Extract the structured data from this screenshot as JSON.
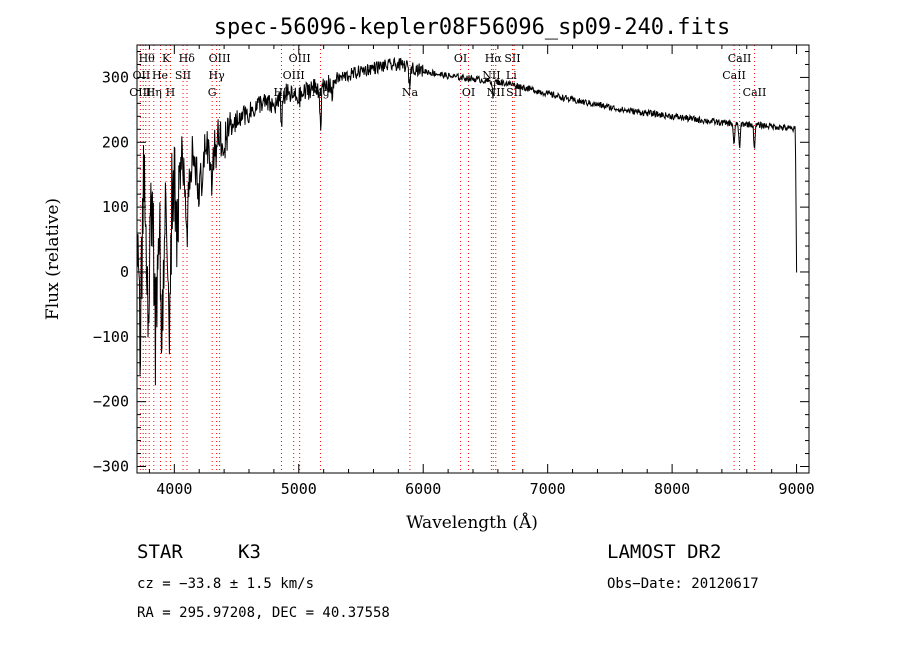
{
  "chart_data": {
    "type": "line",
    "title": "spec-56096-kepler08F56096_sp09-240.fits",
    "xlabel": "Wavelength (Å)",
    "ylabel": "Flux (relative)",
    "xlim": [
      3700,
      9100
    ],
    "ylim": [
      -310,
      350
    ],
    "xticks": [
      4000,
      5000,
      6000,
      7000,
      8000,
      9000
    ],
    "yticks": [
      -300,
      -200,
      -100,
      0,
      100,
      200,
      300
    ],
    "grid": false,
    "series_color": "#000000",
    "line_marker_color": "#ff0000",
    "anchors": [
      [
        3700,
        50
      ],
      [
        3725,
        -100
      ],
      [
        3760,
        200
      ],
      [
        3790,
        -60
      ],
      [
        3820,
        150
      ],
      [
        3850,
        -110
      ],
      [
        3875,
        100
      ],
      [
        3900,
        -70
      ],
      [
        3930,
        160
      ],
      [
        3960,
        -30
      ],
      [
        3990,
        190
      ],
      [
        4020,
        30
      ],
      [
        4060,
        180
      ],
      [
        4100,
        110
      ],
      [
        4150,
        190
      ],
      [
        4200,
        120
      ],
      [
        4250,
        210
      ],
      [
        4300,
        170
      ],
      [
        4350,
        220
      ],
      [
        4400,
        200
      ],
      [
        4500,
        235
      ],
      [
        4600,
        245
      ],
      [
        4700,
        262
      ],
      [
        4800,
        255
      ],
      [
        4900,
        275
      ],
      [
        5000,
        268
      ],
      [
        5100,
        285
      ],
      [
        5200,
        282
      ],
      [
        5300,
        298
      ],
      [
        5400,
        303
      ],
      [
        5500,
        310
      ],
      [
        5600,
        315
      ],
      [
        5700,
        318
      ],
      [
        5800,
        320
      ],
      [
        5900,
        316
      ],
      [
        6000,
        310
      ],
      [
        6100,
        306
      ],
      [
        6200,
        302
      ],
      [
        6300,
        300
      ],
      [
        6400,
        298
      ],
      [
        6500,
        295
      ],
      [
        6600,
        293
      ],
      [
        6700,
        290
      ],
      [
        6800,
        285
      ],
      [
        6900,
        280
      ],
      [
        7000,
        275
      ],
      [
        7200,
        265
      ],
      [
        7400,
        258
      ],
      [
        7600,
        250
      ],
      [
        7800,
        245
      ],
      [
        8000,
        240
      ],
      [
        8200,
        235
      ],
      [
        8400,
        230
      ],
      [
        8600,
        228
      ],
      [
        8800,
        225
      ],
      [
        8990,
        220
      ],
      [
        9000,
        0
      ],
      [
        9010,
        0
      ]
    ],
    "absorption_dips": [
      [
        3934,
        110
      ],
      [
        3969,
        90
      ],
      [
        4102,
        60
      ],
      [
        4227,
        40
      ],
      [
        4300,
        35
      ],
      [
        4340,
        40
      ],
      [
        4384,
        25
      ],
      [
        4861,
        35
      ],
      [
        5175,
        55
      ],
      [
        5270,
        25
      ],
      [
        5890,
        30
      ],
      [
        6563,
        25
      ],
      [
        8498,
        35
      ],
      [
        8542,
        40
      ],
      [
        8662,
        35
      ]
    ],
    "line_markers": {
      "wavelengths": [
        3727,
        3750,
        3771,
        3798,
        3835,
        3889,
        3934,
        3969,
        4070,
        4102,
        4304,
        4340,
        4364,
        4861,
        4959,
        5007,
        5175,
        5893,
        6300,
        6364,
        6548,
        6563,
        6583,
        6717,
        6731,
        8498,
        8542,
        8662
      ],
      "labels": [
        {
          "text": "Hθ",
          "wl": 3778,
          "row": 1
        },
        {
          "text": "K",
          "wl": 3934,
          "row": 1
        },
        {
          "text": "Hδ",
          "wl": 4100,
          "row": 1
        },
        {
          "text": "OIII",
          "wl": 4364,
          "row": 1
        },
        {
          "text": "OIII",
          "wl": 5007,
          "row": 1
        },
        {
          "text": "OI",
          "wl": 6300,
          "row": 1
        },
        {
          "text": "Hα",
          "wl": 6563,
          "row": 1
        },
        {
          "text": "SII",
          "wl": 6717,
          "row": 1
        },
        {
          "text": "CaII",
          "wl": 8542,
          "row": 1
        },
        {
          "text": "OII",
          "wl": 3735,
          "row": 2
        },
        {
          "text": "He",
          "wl": 3885,
          "row": 2
        },
        {
          "text": "SII",
          "wl": 4070,
          "row": 2
        },
        {
          "text": "Hγ",
          "wl": 4340,
          "row": 2
        },
        {
          "text": "OIII",
          "wl": 4959,
          "row": 2
        },
        {
          "text": "NII",
          "wl": 6548,
          "row": 2
        },
        {
          "text": "Li",
          "wl": 6708,
          "row": 2
        },
        {
          "text": "CaII",
          "wl": 8498,
          "row": 2
        },
        {
          "text": "OIII",
          "wl": 3726,
          "row": 3
        },
        {
          "text": "Hη",
          "wl": 3835,
          "row": 3
        },
        {
          "text": "H",
          "wl": 3969,
          "row": 3
        },
        {
          "text": "G",
          "wl": 4304,
          "row": 3
        },
        {
          "text": "Hβ",
          "wl": 4861,
          "row": 3
        },
        {
          "text": "Mg",
          "wl": 5175,
          "row": 3
        },
        {
          "text": "Na",
          "wl": 5893,
          "row": 3
        },
        {
          "text": "OI",
          "wl": 6364,
          "row": 3
        },
        {
          "text": "NII",
          "wl": 6583,
          "row": 3
        },
        {
          "text": "SII",
          "wl": 6731,
          "row": 3
        },
        {
          "text": "CaII",
          "wl": 8662,
          "row": 3
        }
      ]
    }
  },
  "info": {
    "class_label": "STAR",
    "subclass": "K3",
    "survey": "LAMOST DR2",
    "cz": "cz = −33.8 ± 1.5 km/s",
    "obs_date": "Obs−Date: 20120617",
    "coords": "RA = 295.97208, DEC =  40.37558"
  }
}
